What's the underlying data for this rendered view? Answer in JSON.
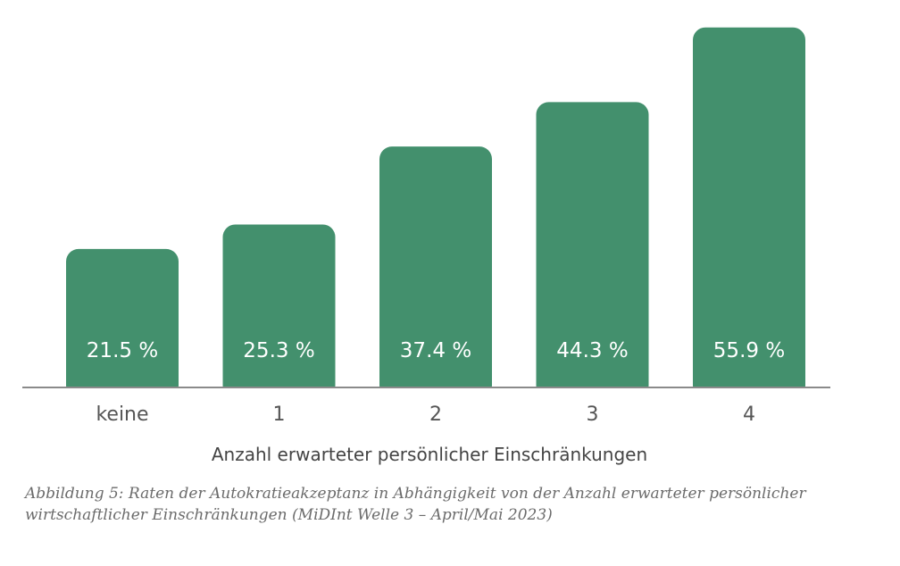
{
  "chart_data": {
    "type": "bar",
    "categories": [
      "keine",
      "1",
      "2",
      "3",
      "4"
    ],
    "values": [
      21.5,
      25.3,
      37.4,
      44.3,
      55.9
    ],
    "value_labels": [
      "21.5 %",
      "25.3 %",
      "37.4 %",
      "44.3 %",
      "55.9 %"
    ],
    "xlabel": "Anzahl erwarteter persönlicher Einschränkungen",
    "ylabel": "",
    "ylim": [
      0,
      56
    ],
    "grid": false,
    "bar_color": "#43906D",
    "axis_color": "#8A8A8A"
  },
  "caption": "Abbildung 5: Raten der Autokratieakzeptanz in Abhängigkeit von der Anzahl erwarteter persönlicher wirtschaftlicher Einschränkungen (MiDInt Welle 3 – April/Mai 2023)"
}
